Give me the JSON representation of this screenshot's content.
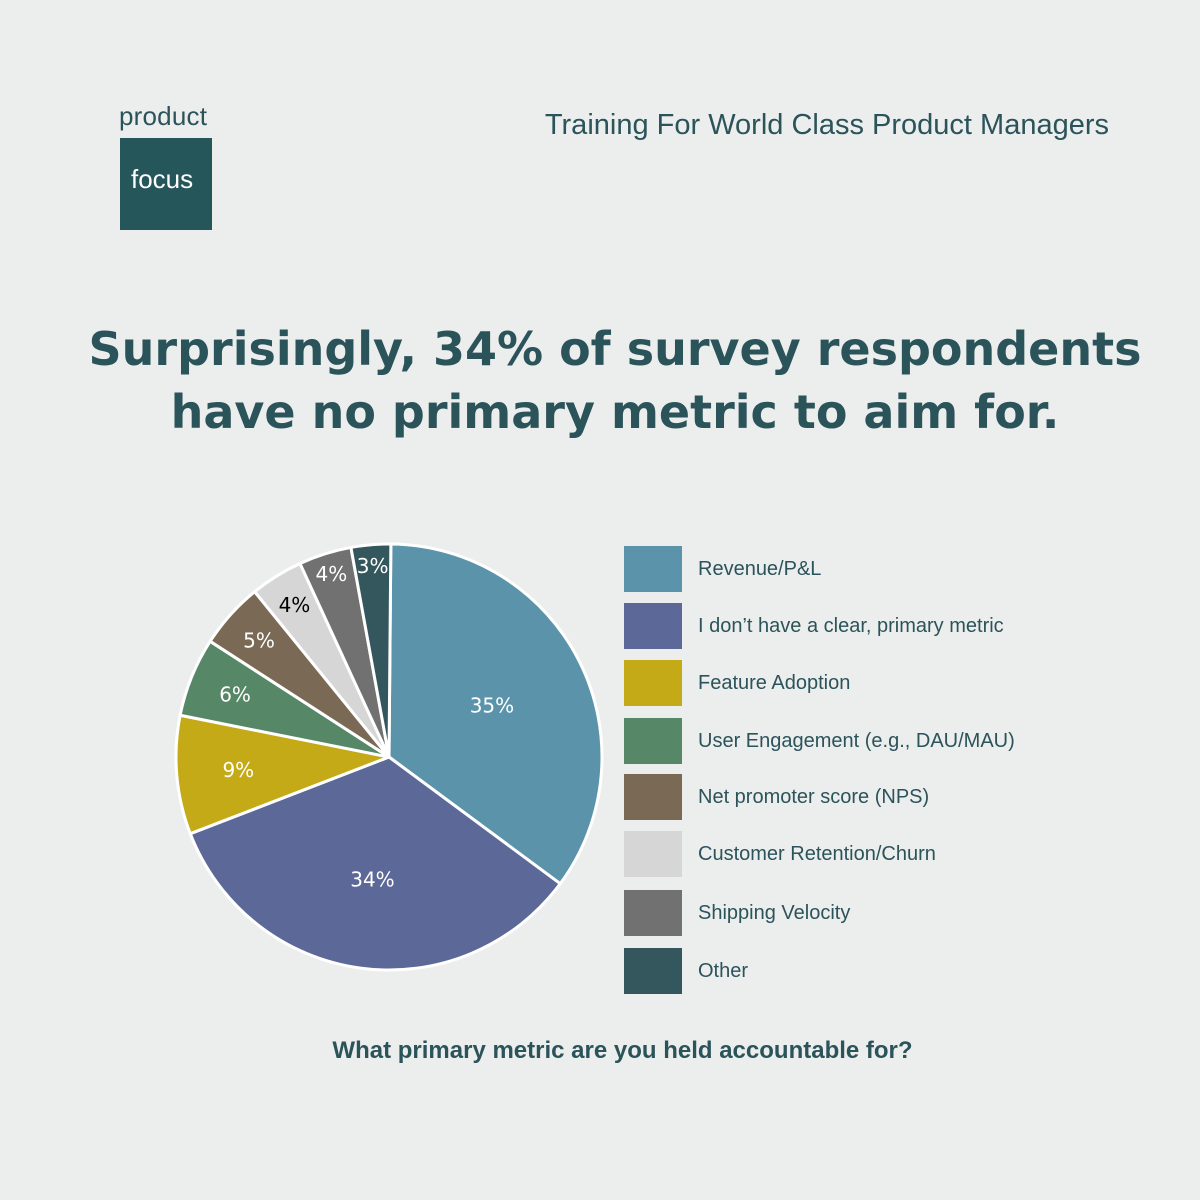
{
  "brand": {
    "logo_top": "product",
    "logo_box": "focus",
    "tagline": "Training For World Class Product Managers",
    "colors": {
      "primary": "#24565a",
      "text": "#2b535a",
      "background": "#eceeed"
    }
  },
  "headline": {
    "line1": "Surprisingly, 34% of survey respondents",
    "line2": "have no primary metric to aim for."
  },
  "chart_data": {
    "type": "pie",
    "title": "What primary metric are you held accountable for?",
    "unit": "%",
    "legend_position": "right",
    "slices": [
      {
        "label": "Revenue/P&L",
        "value": 35,
        "display": "35%",
        "color": "#5b94aa",
        "label_color": "#ffffff"
      },
      {
        "label": "I don’t have a clear, primary metric",
        "value": 34,
        "display": "34%",
        "color": "#5c6897",
        "label_color": "#ffffff"
      },
      {
        "label": "Feature Adoption",
        "value": 9,
        "display": "9%",
        "color": "#c4aa16",
        "label_color": "#ffffff"
      },
      {
        "label": "User Engagement (e.g., DAU/MAU)",
        "value": 6,
        "display": "6%",
        "color": "#568868",
        "label_color": "#ffffff"
      },
      {
        "label": "Net promoter score (NPS)",
        "value": 5,
        "display": "5%",
        "color": "#7a6a55",
        "label_color": "#ffffff"
      },
      {
        "label": "Customer Retention/Churn",
        "value": 4,
        "display": "4%",
        "color": "#d6d6d6",
        "label_color": "#000000"
      },
      {
        "label": "Shipping Velocity",
        "value": 4,
        "display": "4%",
        "color": "#717171",
        "label_color": "#ffffff"
      },
      {
        "label": "Other",
        "value": 3,
        "display": "3%",
        "color": "#34565d",
        "label_color": "#ffffff"
      }
    ]
  },
  "footer": {
    "question": "What primary metric are you held accountable for?"
  }
}
